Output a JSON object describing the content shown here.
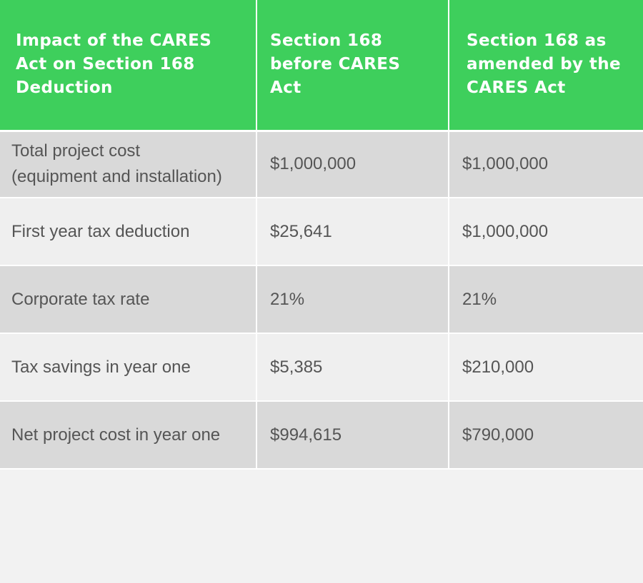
{
  "table": {
    "headers": [
      "Impact of the CARES Act on Section 168 Deduction",
      "Section 168 before CARES Act",
      "Section 168 as amended by the CARES Act"
    ],
    "rows": [
      {
        "label_line1": "Total project cost",
        "label_line2": "(equipment and installation)",
        "before": "$1,000,000",
        "after": "$1,000,000"
      },
      {
        "label": "First year tax deduction",
        "before": "$25,641",
        "after": "$1,000,000"
      },
      {
        "label": "Corporate tax rate",
        "before": "21%",
        "after": "21%"
      },
      {
        "label": "Tax savings in year one",
        "before": "$5,385",
        "after": "$210,000"
      },
      {
        "label": "Net project cost in year one",
        "before": "$994,615",
        "after": "$790,000"
      }
    ]
  },
  "colors": {
    "header_bg": "#3ecf5c",
    "header_text": "#ffffff",
    "row_dark": "#d9d9d9",
    "row_light": "#efefef",
    "body_text": "#555555",
    "page_bg": "#f2f2f2"
  }
}
